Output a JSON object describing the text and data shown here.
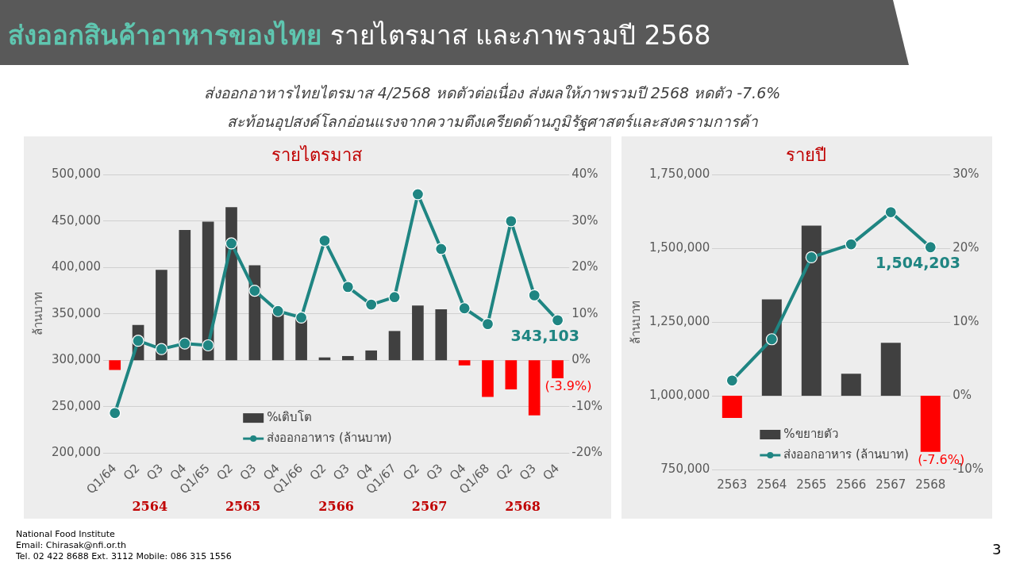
{
  "chart_data": [
    {
      "type": "bar",
      "title": "รายไตรมาส",
      "ylabel": "ล้านบาท",
      "categories": [
        "Q1/64",
        "Q2",
        "Q3",
        "Q4",
        "Q1/65",
        "Q2",
        "Q3",
        "Q4",
        "Q1/66",
        "Q2",
        "Q3",
        "Q4",
        "Q1/67",
        "Q2",
        "Q3",
        "Q4",
        "Q1/68",
        "Q2",
        "Q3",
        "Q4"
      ],
      "series": [
        {
          "name": "%เติบโต",
          "axis": "y2",
          "colors": [
            "#ff0000",
            "#404040",
            "#404040",
            "#404040",
            "#404040",
            "#404040",
            "#404040",
            "#404040",
            "#404040",
            "#404040",
            "#404040",
            "#404040",
            "#404040",
            "#404040",
            "#404040",
            "#ff0000",
            "#ff0000",
            "#ff0000",
            "#ff0000",
            "#ff0000"
          ],
          "values": [
            -2.1,
            7.6,
            19.5,
            28.1,
            29.9,
            33,
            20.5,
            10.3,
            9.2,
            0.6,
            0.9,
            2.1,
            6.3,
            11.8,
            11,
            -1.1,
            -7.9,
            -6.3,
            -11.9,
            -3.9
          ],
          "value_labels": [
            null,
            null,
            null,
            null,
            null,
            null,
            null,
            null,
            null,
            null,
            null,
            null,
            null,
            null,
            null,
            null,
            null,
            null,
            null,
            "(-3.9%)"
          ]
        },
        {
          "name": "ส่งออกอาหาร (ล้านบาท)",
          "type": "line",
          "color": "#1f8582",
          "values": [
            243000,
            321000,
            312000,
            318000,
            316000,
            426000,
            375000,
            353000,
            346000,
            429000,
            379000,
            360000,
            368000,
            479000,
            420000,
            356000,
            339000,
            450000,
            370000,
            343103
          ],
          "value_labels": [
            null,
            null,
            null,
            null,
            null,
            null,
            null,
            null,
            null,
            null,
            null,
            null,
            null,
            null,
            null,
            null,
            null,
            null,
            null,
            "343,103"
          ]
        }
      ],
      "ylim": [
        200000,
        500000
      ],
      "yticks": [
        {
          "value": 200000,
          "label": "200,000"
        },
        {
          "value": 250000,
          "label": "250,000"
        },
        {
          "value": 300000,
          "label": "300,000"
        },
        {
          "value": 350000,
          "label": "350,000"
        },
        {
          "value": 400000,
          "label": "400,000"
        },
        {
          "value": 450000,
          "label": "450,000"
        },
        {
          "value": 500000,
          "label": "500,000"
        }
      ],
      "y2lim": [
        -20,
        40
      ],
      "y2ticks": [
        {
          "value": -20,
          "label": "-20%"
        },
        {
          "value": -10,
          "label": "-10%"
        },
        {
          "value": 0,
          "label": "0%"
        },
        {
          "value": 10,
          "label": "10%"
        },
        {
          "value": 20,
          "label": "20%"
        },
        {
          "value": 30,
          "label": "30%"
        },
        {
          "value": 40,
          "label": "40%"
        }
      ],
      "grid": "y",
      "legend": "bottom",
      "marker": "circle",
      "annotations": [
        "ส่งออกสินค้าอาหารของไทย",
        "รายไตรมาส และภาพรวมปี 2568",
        "ส่งออกอาหารไทยไตรมาส 4/2568 หดตัวต่อเนื่อง ส่งผลให้ภาพรวมปี 2568 หดตัว -7.6%",
        "สะท้อนอุปสงค์โลกอ่อนแรงจากความตึงเครียดด้านภูมิรัฐศาสตร์และสงครามการค้า",
        "2564",
        "2565",
        "2566",
        "2567",
        "2568"
      ]
    },
    {
      "type": "bar",
      "title": "รายปี",
      "ylabel": "ล้านบาท",
      "categories": [
        "2563",
        "2564",
        "2565",
        "2566",
        "2567",
        "2568"
      ],
      "series": [
        {
          "name": "%ขยายตัว",
          "axis": "y2",
          "colors": [
            "#ff0000",
            "#404040",
            "#404040",
            "#404040",
            "#404040",
            "#ff0000"
          ],
          "values": [
            -3.0,
            13.1,
            23.1,
            3.0,
            7.2,
            -7.6
          ],
          "value_labels": [
            null,
            null,
            null,
            null,
            null,
            "(-7.6%)"
          ]
        },
        {
          "name": "ส่งออกอาหาร (ล้านบาท)",
          "type": "line",
          "color": "#1f8582",
          "values": [
            1052000,
            1192000,
            1470000,
            1514000,
            1623000,
            1504203
          ],
          "value_labels": [
            null,
            null,
            null,
            null,
            null,
            "1,504,203"
          ]
        }
      ],
      "ylim": [
        750000,
        1750000
      ],
      "yticks": [
        {
          "value": 750000,
          "label": "750,000"
        },
        {
          "value": 1000000,
          "label": "1,000,000"
        },
        {
          "value": 1250000,
          "label": "1,250,000"
        },
        {
          "value": 1500000,
          "label": "1,500,000"
        },
        {
          "value": 1750000,
          "label": "1,750,000"
        }
      ],
      "y2lim": [
        -10,
        30
      ],
      "y2ticks": [
        {
          "value": -10,
          "label": "-10%"
        },
        {
          "value": 0,
          "label": "0%"
        },
        {
          "value": 10,
          "label": "10%"
        },
        {
          "value": 20,
          "label": "20%"
        },
        {
          "value": 30,
          "label": "30%"
        }
      ],
      "grid": "y",
      "legend": "bottom",
      "marker": "circle",
      "annotations": [
        "National Food Institute",
        "Email: Chirasak@nfi.or.th",
        "Tel. 02 422 8688 Ext. 3112 Mobile: 086 315 1556",
        "3"
      ]
    }
  ]
}
